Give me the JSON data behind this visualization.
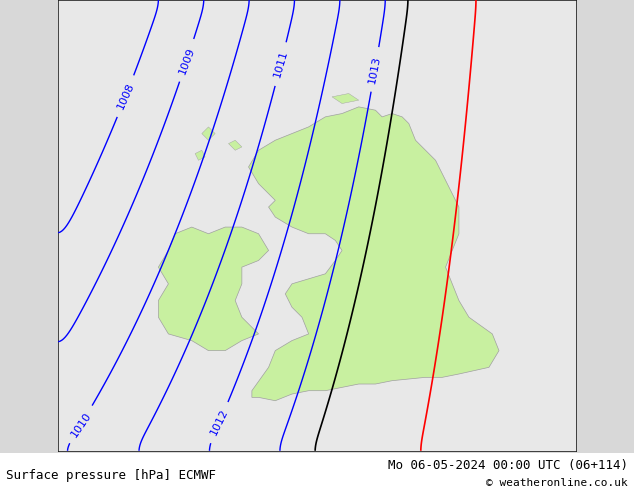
{
  "title_left": "Surface pressure [hPa] ECMWF",
  "title_right": "Mo 06-05-2024 00:00 UTC (06+114)",
  "copyright": "© weatheronline.co.uk",
  "bg_color": "#d8d8d8",
  "land_color": "#c8f0a0",
  "sea_color": "#e8e8e8",
  "contour_color_blue": "#0000ff",
  "contour_color_black": "#000000",
  "contour_color_red": "#ff0000",
  "isobars": [
    1008,
    1009,
    1010,
    1011,
    1012,
    1013
  ],
  "label_fontsize": 8,
  "title_fontsize": 9
}
